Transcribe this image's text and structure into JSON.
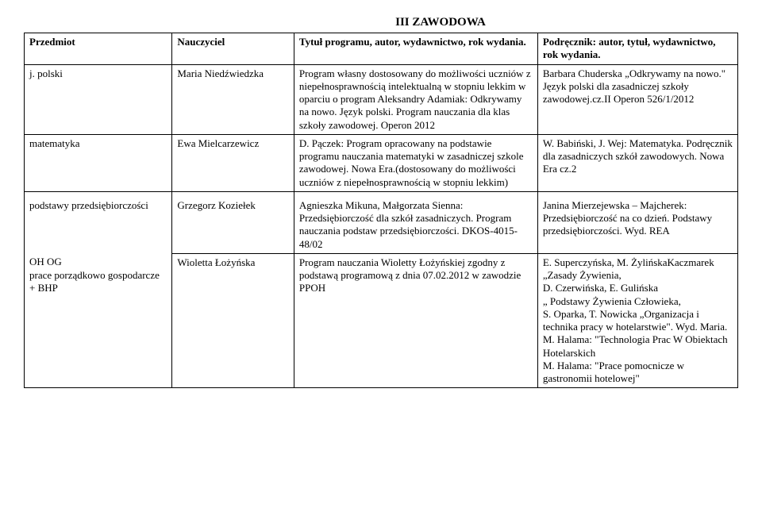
{
  "title": "III ZAWODOWA",
  "headers": {
    "subject": "Przedmiot",
    "teacher": "Nauczyciel",
    "program": "Tytuł programu, autor, wydawnictwo, rok wydania.",
    "textbook": "Podręcznik: autor, tytuł, wydawnictwo, rok wydania."
  },
  "rows": [
    {
      "subject": "j. polski",
      "teacher": "Maria Niedźwiedzka",
      "program": "Program własny dostosowany do możliwości uczniów z niepełnosprawnością intelektualną w stopniu lekkim w oparciu o program Aleksandry Adamiak: Odkrywamy na nowo. Język polski. Program nauczania dla klas szkoły zawodowej. Operon 2012",
      "textbook": "Barbara Chuderska „Odkrywamy na nowo.\" Język polski dla zasadniczej szkoły zawodowej.cz.II Operon 526/1/2012"
    },
    {
      "subject": "matematyka",
      "teacher": "Ewa Mielcarzewicz",
      "program": "D. Pączek: Program opracowany na podstawie programu nauczania matematyki w zasadniczej szkole zawodowej. Nowa Era.(dostosowany do możliwości uczniów z niepełnosprawnością w stopniu lekkim)",
      "textbook": "W. Babiński, J. Wej: Matematyka. Podręcznik dla zasadniczych szkół zawodowych. Nowa Era  cz.2"
    },
    {
      "subject": "podstawy przedsiębiorczości",
      "teacher": "Grzegorz Koziełek",
      "program": "Agnieszka Mikuna, Małgorzata Sienna: Przedsiębiorczość dla szkół zasadniczych. Program nauczania podstaw przedsiębiorczości. DKOS-4015-48/02",
      "textbook": "Janina Mierzejewska – Majcherek: Przedsiębiorczość na co dzień. Podstawy przedsiębiorczości. Wyd. REA"
    },
    {
      "subject": "OH OG\nprace porządkowo gospodarcze + BHP",
      "teacher": "Wioletta Łożyńska",
      "program": "Program nauczania Wioletty Łożyńskiej zgodny z podstawą programową z dnia 07.02.2012 w zawodzie PPOH",
      "textbook": "E. Superczyńska, M. ŻylińskaKaczmarek „Zasady Żywienia,\nD. Czerwińska, E. Gulińska\n„ Podstawy Żywienia Człowieka,\nS. Oparka, T. Nowicka „Organizacja i technika pracy w hotelarstwie\". Wyd. Maria.\nM. Halama: \"Technologia Prac W Obiektach Hotelarskich\nM. Halama: \"Prace pomocnicze w gastronomii hotelowej\""
    }
  ]
}
